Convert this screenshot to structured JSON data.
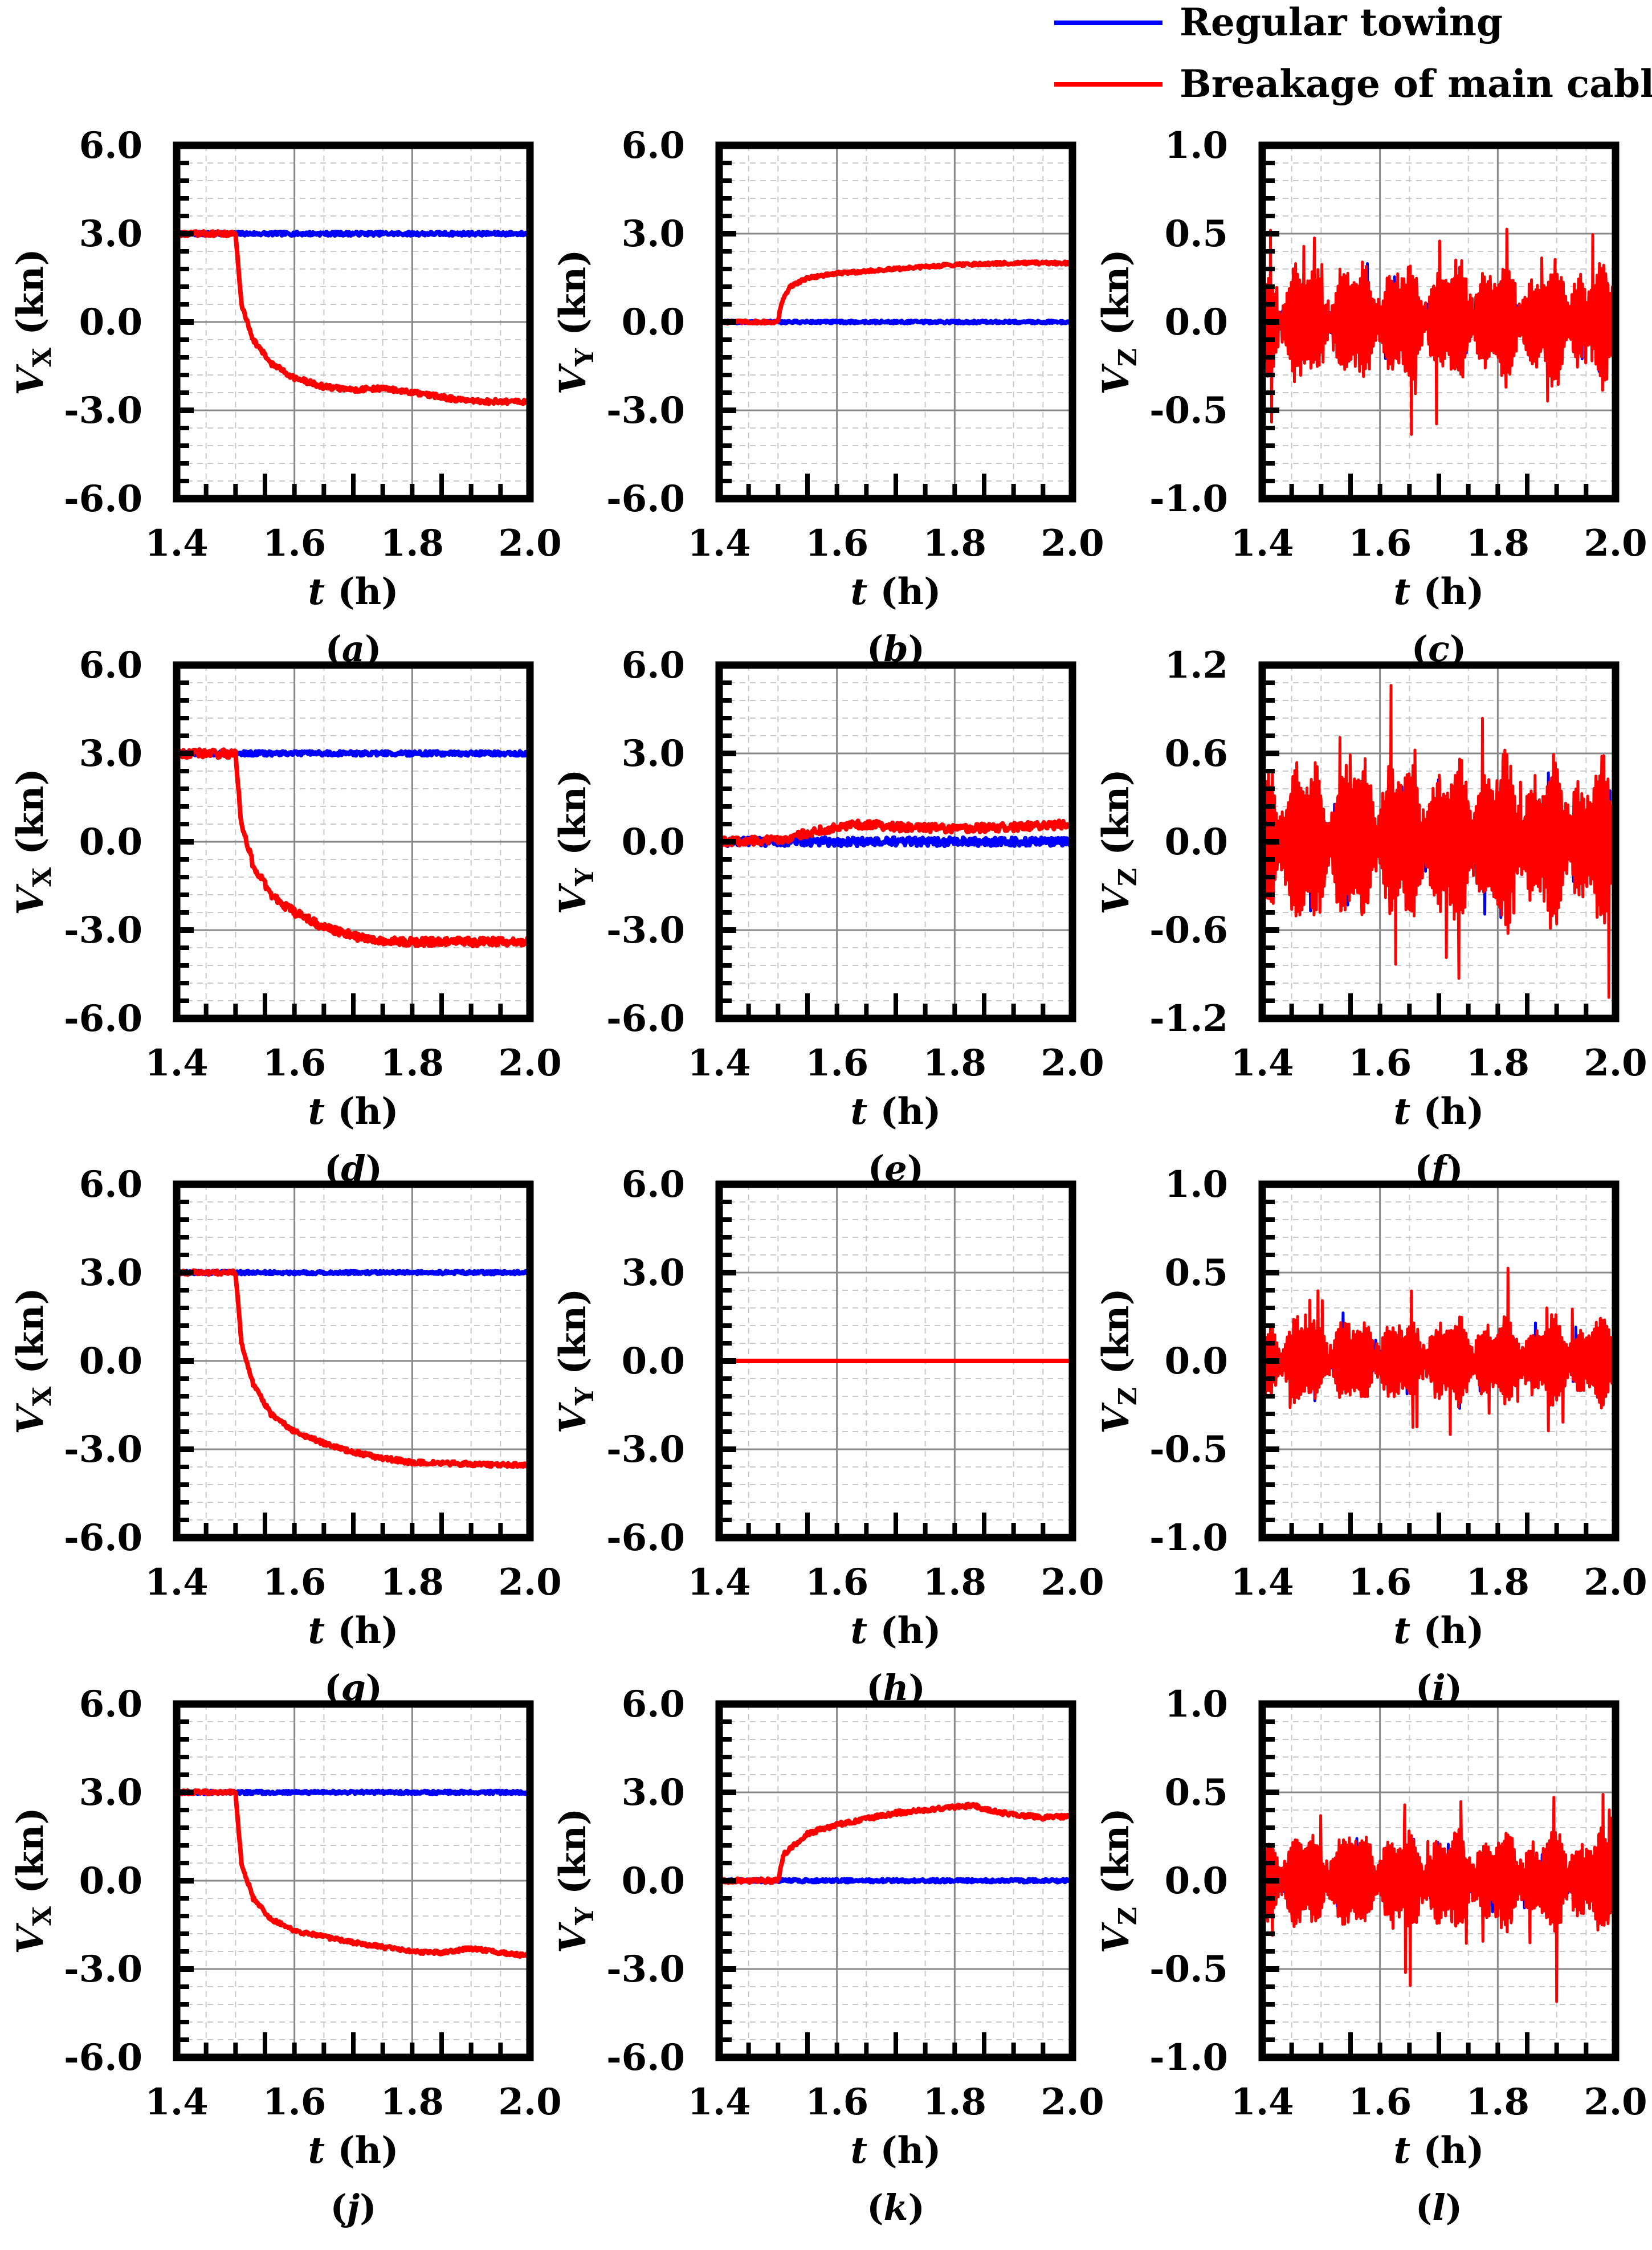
{
  "legend": [
    {
      "label": "Regular towing",
      "color": "#0000ff"
    },
    {
      "label": "Breakage of main cable",
      "color": "#ff0000"
    }
  ],
  "chart_data": [
    {
      "id": "a",
      "type": "line",
      "subtitle": "(a)",
      "xlabel": "t (h)",
      "ylabel": "VX (kn)",
      "xlim": [
        1.4,
        2.0
      ],
      "ylim": [
        -6,
        6
      ],
      "xticks": [
        "1.4",
        "1.6",
        "1.8",
        "2.0"
      ],
      "yticks": [
        "6.0",
        "3.0",
        "0.0",
        "-3.0",
        "-6.0"
      ],
      "series": [
        {
          "name": "Regular towing",
          "color": "#0000ff",
          "x": [
            1.4,
            2.0
          ],
          "y": [
            3.0,
            3.0
          ],
          "noise": 0.06
        },
        {
          "name": "Breakage of main cable",
          "color": "#ff0000",
          "x": [
            1.4,
            1.5,
            1.51,
            1.53,
            1.56,
            1.6,
            1.65,
            1.7,
            1.75,
            1.8,
            1.85,
            1.9,
            1.95,
            2.0
          ],
          "y": [
            3.0,
            3.0,
            0.6,
            -0.6,
            -1.4,
            -1.9,
            -2.2,
            -2.3,
            -2.25,
            -2.4,
            -2.55,
            -2.7,
            -2.7,
            -2.7
          ],
          "noise": 0.08
        }
      ]
    },
    {
      "id": "b",
      "type": "line",
      "subtitle": "(b)",
      "xlabel": "t (h)",
      "ylabel": "VY (kn)",
      "xlim": [
        1.4,
        2.0
      ],
      "ylim": [
        -6,
        6
      ],
      "xticks": [
        "1.4",
        "1.6",
        "1.8",
        "2.0"
      ],
      "yticks": [
        "6.0",
        "3.0",
        "0.0",
        "-3.0",
        "-6.0"
      ],
      "series": [
        {
          "name": "Regular towing",
          "color": "#0000ff",
          "x": [
            1.4,
            2.0
          ],
          "y": [
            0.0,
            0.0
          ],
          "noise": 0.04
        },
        {
          "name": "Breakage of main cable",
          "color": "#ff0000",
          "x": [
            1.4,
            1.5,
            1.505,
            1.52,
            1.55,
            1.6,
            1.7,
            1.8,
            1.9,
            2.0
          ],
          "y": [
            0.0,
            0.0,
            0.6,
            1.2,
            1.5,
            1.65,
            1.8,
            1.95,
            2.0,
            2.0
          ],
          "noise": 0.05
        }
      ]
    },
    {
      "id": "c",
      "type": "line",
      "subtitle": "(c)",
      "xlabel": "t (h)",
      "ylabel": "VZ (kn)",
      "xlim": [
        1.4,
        2.0
      ],
      "ylim": [
        -1,
        1
      ],
      "xticks": [
        "1.4",
        "1.6",
        "1.8",
        "2.0"
      ],
      "yticks": [
        "1.0",
        "0.5",
        "0.0",
        "-0.5",
        "-1.0"
      ],
      "series": [
        {
          "name": "Regular towing",
          "color": "#0000ff",
          "x": [
            1.4,
            2.0
          ],
          "y": [
            0.0,
            0.0
          ],
          "noise": 0.15,
          "osc": true
        },
        {
          "name": "Breakage of main cable",
          "color": "#ff0000",
          "x": [
            1.4,
            2.0
          ],
          "y": [
            0.0,
            0.0
          ],
          "noise": 0.3,
          "osc": true
        }
      ]
    },
    {
      "id": "d",
      "type": "line",
      "subtitle": "(d)",
      "xlabel": "t (h)",
      "ylabel": "VX (kn)",
      "xlim": [
        1.4,
        2.0
      ],
      "ylim": [
        -6,
        6
      ],
      "xticks": [
        "1.4",
        "1.6",
        "1.8",
        "2.0"
      ],
      "yticks": [
        "6.0",
        "3.0",
        "0.0",
        "-3.0",
        "-6.0"
      ],
      "series": [
        {
          "name": "Regular towing",
          "color": "#0000ff",
          "x": [
            1.4,
            2.0
          ],
          "y": [
            3.0,
            3.0
          ],
          "noise": 0.07
        },
        {
          "name": "Breakage of main cable",
          "color": "#ff0000",
          "x": [
            1.4,
            1.5,
            1.51,
            1.53,
            1.56,
            1.6,
            1.65,
            1.7,
            1.75,
            1.8,
            1.9,
            2.0
          ],
          "y": [
            3.0,
            3.0,
            0.6,
            -0.8,
            -1.8,
            -2.4,
            -2.9,
            -3.2,
            -3.35,
            -3.4,
            -3.4,
            -3.4
          ],
          "noise": 0.14
        }
      ]
    },
    {
      "id": "e",
      "type": "line",
      "subtitle": "(e)",
      "xlabel": "t (h)",
      "ylabel": "VY (kn)",
      "xlim": [
        1.4,
        2.0
      ],
      "ylim": [
        -6,
        6
      ],
      "xticks": [
        "1.4",
        "1.6",
        "1.8",
        "2.0"
      ],
      "yticks": [
        "6.0",
        "3.0",
        "0.0",
        "-3.0",
        "-6.0"
      ],
      "series": [
        {
          "name": "Regular towing",
          "color": "#0000ff",
          "x": [
            1.4,
            2.0
          ],
          "y": [
            0.0,
            0.0
          ],
          "noise": 0.14
        },
        {
          "name": "Breakage of main cable",
          "color": "#ff0000",
          "x": [
            1.4,
            1.5,
            1.55,
            1.6,
            1.65,
            1.7,
            1.8,
            1.9,
            2.0
          ],
          "y": [
            0.0,
            0.05,
            0.3,
            0.5,
            0.6,
            0.5,
            0.45,
            0.5,
            0.6
          ],
          "noise": 0.14
        }
      ]
    },
    {
      "id": "f",
      "type": "line",
      "subtitle": "(f)",
      "xlabel": "t (h)",
      "ylabel": "VZ (kn)",
      "xlim": [
        1.4,
        2.0
      ],
      "ylim": [
        -1.2,
        1.2
      ],
      "xticks": [
        "1.4",
        "1.6",
        "1.8",
        "2.0"
      ],
      "yticks": [
        "1.2",
        "0.6",
        "0.0",
        "-0.6",
        "-1.2"
      ],
      "series": [
        {
          "name": "Regular towing",
          "color": "#0000ff",
          "x": [
            1.4,
            2.0
          ],
          "y": [
            0.0,
            0.0
          ],
          "noise": 0.25,
          "osc": true
        },
        {
          "name": "Breakage of main cable",
          "color": "#ff0000",
          "x": [
            1.4,
            2.0
          ],
          "y": [
            0.0,
            0.0
          ],
          "noise": 0.5,
          "osc": true
        }
      ]
    },
    {
      "id": "g",
      "type": "line",
      "subtitle": "(g)",
      "xlabel": "t (h)",
      "ylabel": "VX (kn)",
      "xlim": [
        1.4,
        2.0
      ],
      "ylim": [
        -6,
        6
      ],
      "xticks": [
        "1.4",
        "1.6",
        "1.8",
        "2.0"
      ],
      "yticks": [
        "6.0",
        "3.0",
        "0.0",
        "-3.0",
        "-6.0"
      ],
      "series": [
        {
          "name": "Regular towing",
          "color": "#0000ff",
          "x": [
            1.4,
            2.0
          ],
          "y": [
            3.0,
            3.0
          ],
          "noise": 0.05
        },
        {
          "name": "Breakage of main cable",
          "color": "#ff0000",
          "x": [
            1.4,
            1.5,
            1.51,
            1.53,
            1.56,
            1.6,
            1.65,
            1.7,
            1.75,
            1.8,
            1.9,
            2.0
          ],
          "y": [
            3.0,
            3.0,
            0.6,
            -0.8,
            -1.8,
            -2.4,
            -2.8,
            -3.1,
            -3.3,
            -3.45,
            -3.5,
            -3.55
          ],
          "noise": 0.07
        }
      ]
    },
    {
      "id": "h",
      "type": "line",
      "subtitle": "(h)",
      "xlabel": "t (h)",
      "ylabel": "VY (kn)",
      "xlim": [
        1.4,
        2.0
      ],
      "ylim": [
        -6,
        6
      ],
      "xticks": [
        "1.4",
        "1.6",
        "1.8",
        "2.0"
      ],
      "yticks": [
        "6.0",
        "3.0",
        "0.0",
        "-3.0",
        "-6.0"
      ],
      "series": [
        {
          "name": "Regular towing",
          "color": "#0000ff",
          "x": [
            1.4,
            2.0
          ],
          "y": [
            0.0,
            0.0
          ],
          "noise": 0.0
        },
        {
          "name": "Breakage of main cable",
          "color": "#ff0000",
          "x": [
            1.4,
            2.0
          ],
          "y": [
            0.0,
            0.0
          ],
          "noise": 0.0
        }
      ]
    },
    {
      "id": "i",
      "type": "line",
      "subtitle": "(i)",
      "xlabel": "t (h)",
      "ylabel": "VZ (kn)",
      "xlim": [
        1.4,
        2.0
      ],
      "ylim": [
        -1,
        1
      ],
      "xticks": [
        "1.4",
        "1.6",
        "1.8",
        "2.0"
      ],
      "yticks": [
        "1.0",
        "0.5",
        "0.0",
        "-0.5",
        "-1.0"
      ],
      "series": [
        {
          "name": "Regular towing",
          "color": "#0000ff",
          "x": [
            1.4,
            2.0
          ],
          "y": [
            0.0,
            0.0
          ],
          "noise": 0.12,
          "osc": true
        },
        {
          "name": "Breakage of main cable",
          "color": "#ff0000",
          "x": [
            1.4,
            2.0
          ],
          "y": [
            0.0,
            0.0
          ],
          "noise": 0.22,
          "osc": true
        }
      ]
    },
    {
      "id": "j",
      "type": "line",
      "subtitle": "(j)",
      "xlabel": "t (h)",
      "ylabel": "VX (kn)",
      "xlim": [
        1.4,
        2.0
      ],
      "ylim": [
        -6,
        6
      ],
      "xticks": [
        "1.4",
        "1.6",
        "1.8",
        "2.0"
      ],
      "yticks": [
        "6.0",
        "3.0",
        "0.0",
        "-3.0",
        "-6.0"
      ],
      "series": [
        {
          "name": "Regular towing",
          "color": "#0000ff",
          "x": [
            1.4,
            2.0
          ],
          "y": [
            3.0,
            3.0
          ],
          "noise": 0.05
        },
        {
          "name": "Breakage of main cable",
          "color": "#ff0000",
          "x": [
            1.4,
            1.5,
            1.51,
            1.53,
            1.56,
            1.6,
            1.65,
            1.7,
            1.75,
            1.8,
            1.85,
            1.9,
            1.95,
            2.0
          ],
          "y": [
            3.0,
            3.0,
            0.6,
            -0.6,
            -1.3,
            -1.7,
            -1.9,
            -2.1,
            -2.25,
            -2.4,
            -2.45,
            -2.3,
            -2.45,
            -2.55
          ],
          "noise": 0.06
        }
      ]
    },
    {
      "id": "k",
      "type": "line",
      "subtitle": "(k)",
      "xlabel": "t (h)",
      "ylabel": "VY (kn)",
      "xlim": [
        1.4,
        2.0
      ],
      "ylim": [
        -6,
        6
      ],
      "xticks": [
        "1.4",
        "1.6",
        "1.8",
        "2.0"
      ],
      "yticks": [
        "6.0",
        "3.0",
        "0.0",
        "-3.0",
        "-6.0"
      ],
      "series": [
        {
          "name": "Regular towing",
          "color": "#0000ff",
          "x": [
            1.4,
            2.0
          ],
          "y": [
            0.0,
            0.0
          ],
          "noise": 0.05
        },
        {
          "name": "Breakage of main cable",
          "color": "#ff0000",
          "x": [
            1.4,
            1.5,
            1.51,
            1.55,
            1.6,
            1.7,
            1.8,
            1.83,
            1.88,
            1.95,
            2.0
          ],
          "y": [
            0.0,
            0.0,
            0.9,
            1.6,
            1.9,
            2.3,
            2.5,
            2.55,
            2.3,
            2.15,
            2.2
          ],
          "noise": 0.07
        }
      ]
    },
    {
      "id": "l",
      "type": "line",
      "subtitle": "(l)",
      "xlabel": "t (h)",
      "ylabel": "VZ (kn)",
      "xlim": [
        1.4,
        2.0
      ],
      "ylim": [
        -1,
        1
      ],
      "xticks": [
        "1.4",
        "1.6",
        "1.8",
        "2.0"
      ],
      "yticks": [
        "1.0",
        "0.5",
        "0.0",
        "-0.5",
        "-1.0"
      ],
      "series": [
        {
          "name": "Regular towing",
          "color": "#0000ff",
          "x": [
            1.4,
            2.0
          ],
          "y": [
            0.0,
            0.0
          ],
          "noise": 0.13,
          "osc": true
        },
        {
          "name": "Breakage of main cable",
          "color": "#ff0000",
          "x": [
            1.4,
            2.0
          ],
          "y": [
            0.0,
            0.0
          ],
          "noise": 0.25,
          "osc": true
        }
      ]
    }
  ]
}
